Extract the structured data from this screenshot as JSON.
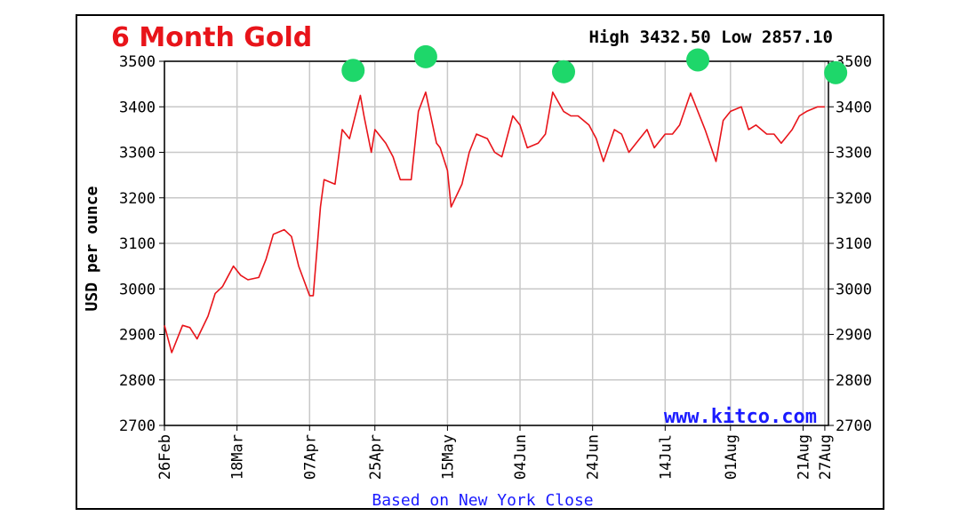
{
  "colors": {
    "line": "#e8141a",
    "grid": "#c8c8c8",
    "marker": "#1ed76a",
    "accent": "#1a1aff"
  },
  "chart_data": {
    "type": "line",
    "title": "6 Month Gold",
    "high_label": "High 3432.50 Low 2857.10",
    "ylabel": "USD per ounce",
    "watermark": "www.kitco.com",
    "footnote": "Based on New York Close",
    "ylim": [
      2700,
      3500
    ],
    "y_ticks": [
      2700,
      2800,
      2900,
      3000,
      3100,
      3200,
      3300,
      3400,
      3500
    ],
    "x_range": [
      "2025-02-26",
      "2025-08-28"
    ],
    "x_ticks": [
      {
        "date": "2025-02-26",
        "label": "26Feb"
      },
      {
        "date": "2025-03-18",
        "label": "18Mar"
      },
      {
        "date": "2025-04-07",
        "label": "07Apr"
      },
      {
        "date": "2025-04-25",
        "label": "25Apr"
      },
      {
        "date": "2025-05-15",
        "label": "15May"
      },
      {
        "date": "2025-06-04",
        "label": "04Jun"
      },
      {
        "date": "2025-06-24",
        "label": "24Jun"
      },
      {
        "date": "2025-07-14",
        "label": "14Jul"
      },
      {
        "date": "2025-08-01",
        "label": "01Aug"
      },
      {
        "date": "2025-08-21",
        "label": "21Aug"
      },
      {
        "date": "2025-08-27",
        "label": "27Aug"
      }
    ],
    "grid": true,
    "series": [
      {
        "x": [
          "2025-02-26",
          "2025-02-28",
          "2025-03-03",
          "2025-03-05",
          "2025-03-07",
          "2025-03-10",
          "2025-03-12",
          "2025-03-14",
          "2025-03-17",
          "2025-03-19",
          "2025-03-21",
          "2025-03-24",
          "2025-03-26",
          "2025-03-28",
          "2025-03-31",
          "2025-04-02",
          "2025-04-04",
          "2025-04-07",
          "2025-04-08",
          "2025-04-10",
          "2025-04-11",
          "2025-04-14",
          "2025-04-16",
          "2025-04-18",
          "2025-04-21",
          "2025-04-22",
          "2025-04-24",
          "2025-04-25",
          "2025-04-28",
          "2025-04-30",
          "2025-05-02",
          "2025-05-05",
          "2025-05-07",
          "2025-05-09",
          "2025-05-12",
          "2025-05-13",
          "2025-05-15",
          "2025-05-16",
          "2025-05-19",
          "2025-05-21",
          "2025-05-23",
          "2025-05-26",
          "2025-05-28",
          "2025-05-30",
          "2025-06-02",
          "2025-06-04",
          "2025-06-06",
          "2025-06-09",
          "2025-06-11",
          "2025-06-13",
          "2025-06-16",
          "2025-06-18",
          "2025-06-20",
          "2025-06-23",
          "2025-06-25",
          "2025-06-27",
          "2025-06-30",
          "2025-07-02",
          "2025-07-04",
          "2025-07-07",
          "2025-07-09",
          "2025-07-11",
          "2025-07-14",
          "2025-07-16",
          "2025-07-18",
          "2025-07-21",
          "2025-07-22",
          "2025-07-24",
          "2025-07-25",
          "2025-07-28",
          "2025-07-30",
          "2025-08-01",
          "2025-08-04",
          "2025-08-06",
          "2025-08-08",
          "2025-08-11",
          "2025-08-13",
          "2025-08-15",
          "2025-08-18",
          "2025-08-20",
          "2025-08-22",
          "2025-08-25",
          "2025-08-27"
        ],
        "values": [
          2920,
          2860,
          2920,
          2915,
          2890,
          2940,
          2990,
          3005,
          3050,
          3030,
          3020,
          3025,
          3065,
          3120,
          3130,
          3115,
          3050,
          2985,
          2985,
          3180,
          3240,
          3230,
          3350,
          3330,
          3425,
          3380,
          3300,
          3350,
          3320,
          3290,
          3240,
          3240,
          3390,
          3432,
          3320,
          3310,
          3260,
          3180,
          3230,
          3300,
          3340,
          3330,
          3300,
          3290,
          3380,
          3360,
          3310,
          3320,
          3340,
          3432,
          3390,
          3380,
          3380,
          3360,
          3330,
          3280,
          3350,
          3340,
          3300,
          3330,
          3350,
          3310,
          3340,
          3340,
          3360,
          3430,
          3410,
          3370,
          3350,
          3280,
          3370,
          3390,
          3400,
          3350,
          3360,
          3340,
          3340,
          3320,
          3350,
          3380,
          3390,
          3400,
          3400
        ]
      }
    ],
    "markers": [
      {
        "date": "2025-04-19",
        "value": 3480
      },
      {
        "date": "2025-05-09",
        "value": 3510
      },
      {
        "date": "2025-06-16",
        "value": 3477
      },
      {
        "date": "2025-07-23",
        "value": 3503
      },
      {
        "date": "2025-08-30",
        "value": 3475
      }
    ]
  }
}
